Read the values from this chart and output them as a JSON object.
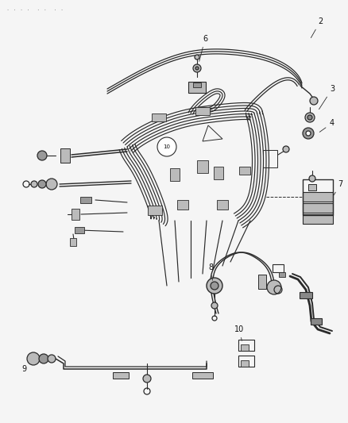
{
  "background_color": "#f5f5f5",
  "line_color": "#2a2a2a",
  "label_color": "#111111",
  "fig_width": 4.38,
  "fig_height": 5.33,
  "dpi": 100,
  "lw_main": 1.4,
  "lw_thin": 0.8,
  "lw_thick": 2.0,
  "gray_fill": "#888888",
  "light_gray": "#bbbbbb",
  "mid_gray": "#999999"
}
